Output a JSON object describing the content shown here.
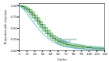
{
  "chart_data": {
    "type": "line",
    "xlabel": "Cycles",
    "ylabel": "Proportion with response",
    "x": [
      0,
      4,
      8,
      12,
      16,
      20,
      24,
      28,
      32,
      36,
      40,
      44,
      48,
      52,
      56,
      60,
      64,
      68,
      72,
      76,
      80,
      84,
      88,
      92,
      96,
      100,
      104,
      108,
      112,
      116,
      120,
      124,
      128,
      132
    ],
    "xlim": [
      0,
      132
    ],
    "ylim": [
      0.0,
      1.05
    ],
    "xticks": [
      0,
      12,
      24,
      36,
      48,
      60,
      72,
      84,
      96,
      108,
      120,
      132
    ],
    "yticks": [
      {
        "value": 0.0,
        "label": "0.00"
      },
      0.25,
      {
        "value": 0.5,
        "label": "0.50"
      },
      0.75,
      {
        "value": 1.0,
        "label": "1.00"
      }
    ],
    "series": [
      {
        "type": "band",
        "color": "#a8d8a8",
        "lower": [
          1.0,
          0.95,
          0.91,
          0.86,
          0.8,
          0.73,
          0.66,
          0.59,
          0.51,
          0.44,
          0.38,
          0.32,
          0.27,
          0.23,
          0.19,
          0.16,
          0.13,
          0.11,
          0.1,
          0.09,
          0.08,
          0.07,
          0.06,
          0.05,
          0.05,
          0.04,
          0.04,
          0.04,
          0.03,
          0.03,
          0.03,
          0.02,
          0.02,
          0.02
        ],
        "upper": [
          1.0,
          1.0,
          0.98,
          0.95,
          0.91,
          0.86,
          0.79,
          0.73,
          0.65,
          0.58,
          0.51,
          0.45,
          0.39,
          0.34,
          0.3,
          0.27,
          0.23,
          0.21,
          0.18,
          0.17,
          0.16,
          0.15,
          0.14,
          0.13,
          0.12,
          0.11,
          0.1,
          0.1,
          0.09,
          0.09,
          0.08,
          0.08,
          0.07,
          0.07
        ]
      },
      {
        "type": "step",
        "color": "#6ab86a",
        "values": [
          1.0,
          1.0,
          0.98,
          0.95,
          0.91,
          0.86,
          0.79,
          0.73,
          0.65,
          0.58,
          0.51,
          0.45,
          0.39,
          0.34,
          0.3,
          0.27,
          0.23,
          0.21,
          0.18,
          0.17,
          0.16,
          0.15,
          0.14,
          0.13,
          0.12,
          0.11,
          0.1,
          0.1,
          0.09,
          0.09,
          0.08,
          0.08,
          0.07,
          0.07
        ]
      },
      {
        "type": "step",
        "color": "#6ab86a",
        "values": [
          1.0,
          0.95,
          0.91,
          0.86,
          0.8,
          0.73,
          0.66,
          0.59,
          0.51,
          0.44,
          0.38,
          0.32,
          0.27,
          0.23,
          0.19,
          0.16,
          0.13,
          0.11,
          0.1,
          0.09,
          0.08,
          0.07,
          0.06,
          0.05,
          0.05,
          0.04,
          0.04,
          0.04,
          0.03,
          0.03,
          0.03,
          0.02,
          0.02,
          0.02
        ]
      },
      {
        "type": "step",
        "color": "#2d6b2d",
        "values": [
          1.0,
          0.98,
          0.95,
          0.91,
          0.86,
          0.8,
          0.73,
          0.66,
          0.58,
          0.51,
          0.44,
          0.38,
          0.33,
          0.28,
          0.24,
          0.21,
          0.18,
          0.16,
          0.14,
          0.13,
          0.12,
          0.11,
          0.1,
          0.09,
          0.08,
          0.08,
          0.07,
          0.07,
          0.06,
          0.06,
          0.06,
          0.05,
          0.05,
          0.05
        ]
      },
      {
        "type": "line",
        "color": "#7ecece",
        "values": [
          1.0,
          0.97,
          0.93,
          0.88,
          0.82,
          0.76,
          0.7,
          0.64,
          0.58,
          0.52,
          0.47,
          0.42,
          0.38,
          0.34,
          0.3,
          0.27,
          0.24,
          0.22,
          0.2,
          0.18,
          0.16,
          0.15,
          0.14,
          0.12,
          0.11,
          0.1,
          0.09,
          0.09,
          0.08,
          0.07,
          0.07,
          0.06,
          0.06,
          0.06
        ]
      },
      {
        "type": "line",
        "color": "#5ab0d8",
        "values": [
          1.0,
          0.96,
          0.9,
          0.83,
          0.75,
          0.67,
          0.59,
          0.52,
          0.45,
          0.39,
          0.33,
          0.28,
          0.24,
          0.2,
          0.17,
          0.14,
          0.12,
          0.1,
          0.09,
          0.08,
          0.07,
          0.06,
          0.05,
          0.05,
          0.04,
          0.04,
          0.03,
          0.03,
          0.03,
          0.03,
          0.02,
          0.02,
          0.02,
          0.02
        ]
      }
    ],
    "annotations": [
      {
        "text": "Exponential",
        "x": 63,
        "y": 0.24,
        "color": "#4a8c8c"
      },
      {
        "text": "Weibull",
        "x": 63,
        "y": 0.175,
        "color": "#3a8ab0"
      }
    ]
  }
}
